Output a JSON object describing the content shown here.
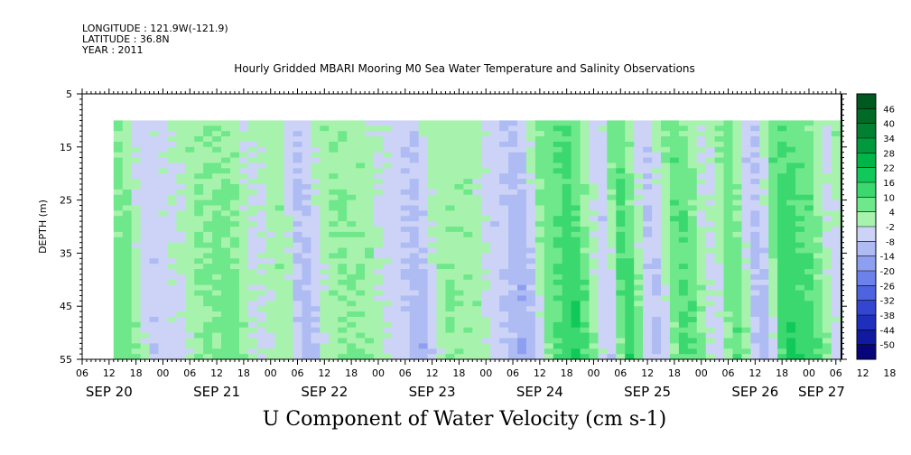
{
  "header": {
    "longitude": "LONGITUDE : 121.9W(-121.9)",
    "latitude": "LATITUDE : 36.8N",
    "year": "YEAR : 2011"
  },
  "chart_data": {
    "type": "heatmap",
    "title": "Hourly Gridded MBARI Mooring M0 Sea Water Temperature and Salinity Observations",
    "xlabel": "U Component of Water Velocity (cm s-1)",
    "ylabel": "DEPTH (m)",
    "ylim": [
      5,
      55
    ],
    "yticks": [
      "5",
      "15",
      "25",
      "35",
      "45",
      "55"
    ],
    "hour_tick_labels": [
      "06",
      "12",
      "18",
      "00",
      "06",
      "12",
      "18",
      "00",
      "06",
      "12",
      "18",
      "00",
      "06",
      "12",
      "18",
      "00",
      "06",
      "12",
      "18",
      "00",
      "06",
      "12",
      "18",
      "00",
      "06",
      "12",
      "18",
      "00",
      "06",
      "12",
      "18",
      "00",
      "06"
    ],
    "day_labels": [
      "SEP 20",
      "SEP 21",
      "SEP 22",
      "SEP 23",
      "SEP 24",
      "SEP 25",
      "SEP 26",
      "SEP 27"
    ],
    "data_depth_range": [
      10,
      55
    ],
    "data_time_start": "SEP 20 13:00",
    "colorbar_levels": [
      "46",
      "40",
      "34",
      "28",
      "22",
      "16",
      "10",
      "4",
      "-2",
      "-8",
      "-14",
      "-20",
      "-26",
      "-32",
      "-38",
      "-44",
      "-50"
    ],
    "colorbar_colors": [
      "#005a1f",
      "#006b26",
      "#008030",
      "#009a3c",
      "#00b548",
      "#10c95a",
      "#3ad86e",
      "#6ee88a",
      "#a7f3ad",
      "#ccd3f7",
      "#aebcf3",
      "#8c9ff0",
      "#6c82ea",
      "#4d63e0",
      "#3346d2",
      "#1e2fbd",
      "#101aa0",
      "#06057a"
    ],
    "u_profile": [
      {
        "time": "SEP 20 13:00",
        "u": 6
      },
      {
        "time": "SEP 20 18:00",
        "u": -6
      },
      {
        "time": "SEP 21 00:00",
        "u": -3
      },
      {
        "time": "SEP 21 06:00",
        "u": 4
      },
      {
        "time": "SEP 21 12:00",
        "u": 6
      },
      {
        "time": "SEP 21 18:00",
        "u": -3
      },
      {
        "time": "SEP 22 00:00",
        "u": 2
      },
      {
        "time": "SEP 22 04:00",
        "u": -10
      },
      {
        "time": "SEP 22 12:00",
        "u": 4
      },
      {
        "time": "SEP 22 18:00",
        "u": 3
      },
      {
        "time": "SEP 23 00:00",
        "u": -4
      },
      {
        "time": "SEP 23 06:00",
        "u": -10
      },
      {
        "time": "SEP 23 12:00",
        "u": 3
      },
      {
        "time": "SEP 23 18:00",
        "u": 2
      },
      {
        "time": "SEP 24 00:00",
        "u": -6
      },
      {
        "time": "SEP 24 05:00",
        "u": -12
      },
      {
        "time": "SEP 24 12:00",
        "u": 8
      },
      {
        "time": "SEP 24 16:00",
        "u": 14
      },
      {
        "time": "SEP 25 00:00",
        "u": -6
      },
      {
        "time": "SEP 25 04:00",
        "u": 12
      },
      {
        "time": "SEP 25 10:00",
        "u": -8
      },
      {
        "time": "SEP 25 17:00",
        "u": 10
      },
      {
        "time": "SEP 26 00:00",
        "u": -4
      },
      {
        "time": "SEP 26 04:00",
        "u": 8
      },
      {
        "time": "SEP 26 10:00",
        "u": -10
      },
      {
        "time": "SEP 26 16:00",
        "u": 14
      },
      {
        "time": "SEP 26 21:00",
        "u": 10
      },
      {
        "time": "SEP 27 03:00",
        "u": -4
      },
      {
        "time": "SEP 27 07:00",
        "u": 12
      }
    ]
  }
}
